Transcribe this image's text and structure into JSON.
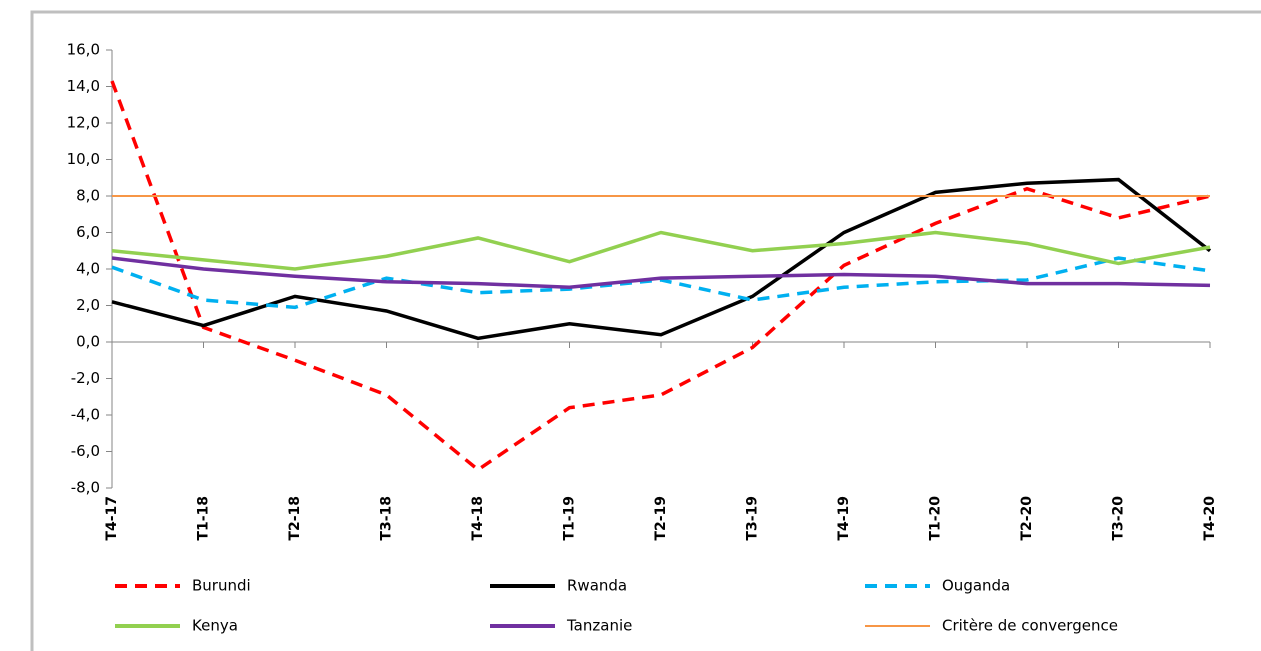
{
  "chart_data": {
    "type": "line",
    "categories": [
      "T4-17",
      "T1-18",
      "T2-18",
      "T3-18",
      "T4-18",
      "T1-19",
      "T2-19",
      "T3-19",
      "T4-19",
      "T1-20",
      "T2-20",
      "T3-20",
      "T4-20"
    ],
    "series": [
      {
        "name": "Burundi",
        "color": "#ff0000",
        "dashed": true,
        "values": [
          14.3,
          0.8,
          -1.0,
          -2.9,
          -7.0,
          -3.6,
          -2.9,
          -0.3,
          4.2,
          6.5,
          8.4,
          6.8,
          8.0
        ]
      },
      {
        "name": "Rwanda",
        "color": "#000000",
        "dashed": false,
        "values": [
          2.2,
          0.9,
          2.5,
          1.7,
          0.2,
          1.0,
          0.4,
          2.5,
          6.0,
          8.2,
          8.7,
          8.9,
          5.0
        ]
      },
      {
        "name": "Ouganda",
        "color": "#00b0f0",
        "dashed": true,
        "values": [
          4.1,
          2.3,
          1.9,
          3.5,
          2.7,
          2.9,
          3.4,
          2.3,
          3.0,
          3.3,
          3.4,
          4.6,
          3.9
        ]
      },
      {
        "name": "Kenya",
        "color": "#92d050",
        "dashed": false,
        "values": [
          5.0,
          4.5,
          4.0,
          4.7,
          5.7,
          4.4,
          6.0,
          5.0,
          5.4,
          6.0,
          5.4,
          4.3,
          5.2
        ]
      },
      {
        "name": "Tanzanie",
        "color": "#7030a0",
        "dashed": false,
        "values": [
          4.6,
          4.0,
          3.6,
          3.3,
          3.2,
          3.0,
          3.5,
          3.6,
          3.7,
          3.6,
          3.2,
          3.2,
          3.1
        ]
      },
      {
        "name": "Critère de convergence",
        "color": "#f79646",
        "dashed": false,
        "thin": true,
        "values": [
          8.0,
          8.0,
          8.0,
          8.0,
          8.0,
          8.0,
          8.0,
          8.0,
          8.0,
          8.0,
          8.0,
          8.0,
          8.0
        ]
      }
    ],
    "ylim": [
      -8,
      16
    ],
    "yticks": [
      {
        "value": -8,
        "label": "-8,0"
      },
      {
        "value": -6,
        "label": "-6,0"
      },
      {
        "value": -4,
        "label": "-4,0"
      },
      {
        "value": -2,
        "label": "-2,0"
      },
      {
        "value": 0,
        "label": "0,0"
      },
      {
        "value": 2,
        "label": "2,0"
      },
      {
        "value": 4,
        "label": "4,0"
      },
      {
        "value": 6,
        "label": "6,0"
      },
      {
        "value": 8,
        "label": "8,0"
      },
      {
        "value": 10,
        "label": "10,0"
      },
      {
        "value": 12,
        "label": "12,0"
      },
      {
        "value": 14,
        "label": "14,0"
      },
      {
        "value": 16,
        "label": "16,0"
      }
    ],
    "grid": false
  }
}
